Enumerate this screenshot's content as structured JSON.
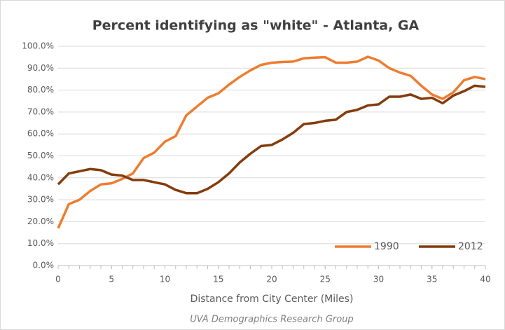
{
  "chart_data": {
    "type": "line",
    "title": "Percent identifying as \"white\" - Atlanta, GA",
    "xlabel": "Distance from City Center (Miles)",
    "source": "UVA Demographics Research Group",
    "x": [
      0,
      1,
      2,
      3,
      4,
      5,
      6,
      7,
      8,
      9,
      10,
      11,
      12,
      13,
      14,
      15,
      16,
      17,
      18,
      19,
      20,
      21,
      22,
      23,
      24,
      25,
      26,
      27,
      28,
      29,
      30,
      31,
      32,
      33,
      34,
      35,
      36,
      37,
      38,
      39,
      40
    ],
    "series": [
      {
        "name": "1990",
        "color": "#ED7D31",
        "values": [
          17,
          28,
          30,
          34,
          37,
          37.5,
          39.5,
          42,
          49,
          51.5,
          56.5,
          59,
          68.5,
          72.5,
          76.5,
          78.5,
          82.5,
          86,
          89,
          91.5,
          92.5,
          92.8,
          93,
          94.5,
          94.8,
          95,
          92.5,
          92.5,
          93,
          95.2,
          93.5,
          90,
          88,
          86.5,
          82,
          78,
          76,
          79,
          84.5,
          86,
          85
        ]
      },
      {
        "name": "2012",
        "color": "#843C0C",
        "values": [
          37,
          42,
          43,
          44,
          43.5,
          41.5,
          41,
          39,
          39,
          38,
          37,
          34.5,
          33,
          33,
          35,
          38,
          42,
          47,
          51,
          54.5,
          55,
          57.5,
          60.5,
          64.5,
          65,
          66,
          66.5,
          70,
          71,
          73,
          73.5,
          77,
          77,
          78,
          76,
          76.5,
          74,
          77.5,
          79.5,
          82,
          81.5
        ]
      }
    ],
    "xlim": [
      0,
      40
    ],
    "xticks": [
      0,
      5,
      10,
      15,
      20,
      25,
      30,
      35,
      40
    ],
    "ylim": [
      0,
      100
    ],
    "yticks": [
      {
        "value": 0,
        "label": "0.0%"
      },
      {
        "value": 10,
        "label": "10.0%"
      },
      {
        "value": 20,
        "label": "20.0%"
      },
      {
        "value": 30,
        "label": "30.0%"
      },
      {
        "value": 40,
        "label": "40.0%"
      },
      {
        "value": 50,
        "label": "50.0%"
      },
      {
        "value": 60,
        "label": "60.0%"
      },
      {
        "value": 70,
        "label": "70.0%"
      },
      {
        "value": 80,
        "label": "80.0%"
      },
      {
        "value": 90,
        "label": "90.0%"
      },
      {
        "value": 100,
        "label": "100.0%"
      }
    ],
    "grid": true,
    "legend": "lower right"
  }
}
